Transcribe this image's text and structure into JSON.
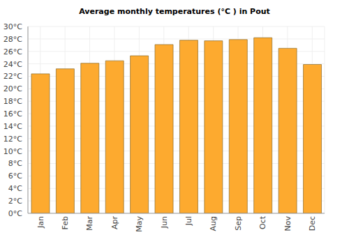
{
  "chart_data": {
    "type": "bar",
    "title": "Average monthly temperatures (°C ) in Pout",
    "categories": [
      "Jan",
      "Feb",
      "Mar",
      "Apr",
      "May",
      "Jun",
      "Jul",
      "Aug",
      "Sep",
      "Oct",
      "Nov",
      "Dec"
    ],
    "values": [
      22.4,
      23.2,
      24.1,
      24.5,
      25.3,
      27.1,
      27.8,
      27.7,
      27.9,
      28.2,
      26.5,
      23.9
    ],
    "color": "#fdaa2f",
    "ylim": [
      0,
      30
    ],
    "yticks": [
      {
        "value": 0,
        "label": "0°C"
      },
      {
        "value": 2,
        "label": "2°C"
      },
      {
        "value": 4,
        "label": "4°C"
      },
      {
        "value": 6,
        "label": "6°C"
      },
      {
        "value": 8,
        "label": "8°C"
      },
      {
        "value": 10,
        "label": "10°C"
      },
      {
        "value": 12,
        "label": "12°C"
      },
      {
        "value": 14,
        "label": "14°C"
      },
      {
        "value": 16,
        "label": "16°C"
      },
      {
        "value": 18,
        "label": "18°C"
      },
      {
        "value": 20,
        "label": "20°C"
      },
      {
        "value": 22,
        "label": "22°C"
      },
      {
        "value": 24,
        "label": "24°C"
      },
      {
        "value": 26,
        "label": "26°C"
      },
      {
        "value": 28,
        "label": "28°C"
      },
      {
        "value": 30,
        "label": "30°C"
      }
    ],
    "grid": true
  }
}
